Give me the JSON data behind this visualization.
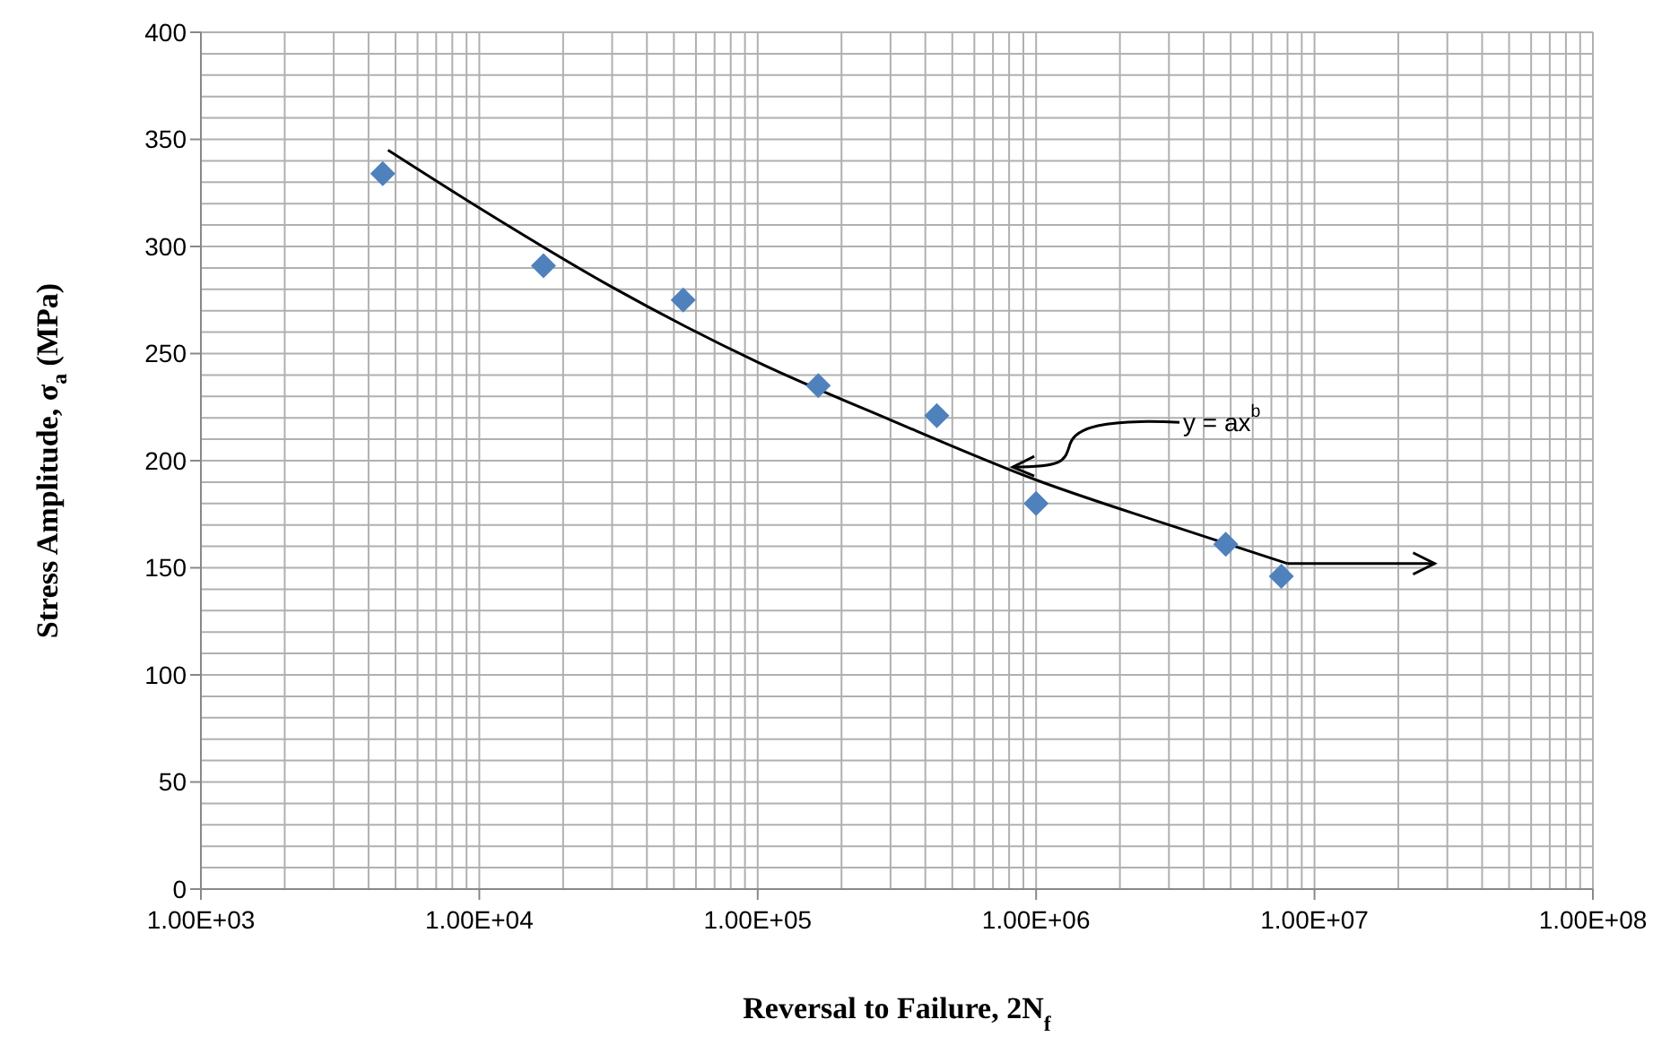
{
  "chart_data": {
    "type": "scatter",
    "xlabel": "Reversal to Failure, 2N$_{f}$",
    "ylabel": "Stress Amplitude, σ$_{a}$ (MPa)",
    "log": "x",
    "grid": true,
    "marker": "diamond",
    "xlim": [
      1000,
      100000000
    ],
    "ylim": [
      0,
      400
    ],
    "xticks": [
      {
        "value": 1000,
        "label": "1.00E+03"
      },
      {
        "value": 10000,
        "label": "1.00E+04"
      },
      {
        "value": 100000,
        "label": "1.00E+05"
      },
      {
        "value": 1000000,
        "label": "1.00E+06"
      },
      {
        "value": 10000000,
        "label": "1.00E+07"
      },
      {
        "value": 100000000,
        "label": "1.00E+08"
      }
    ],
    "yticks": [
      0,
      50,
      100,
      150,
      200,
      250,
      300,
      350,
      400
    ],
    "series": [
      {
        "color": "#4f81bd",
        "x": [
          4500,
          17000,
          54000,
          165000,
          440000,
          1000000,
          4800000,
          7600000
        ],
        "values": [
          334,
          291,
          275,
          235,
          221,
          180,
          161,
          146
        ]
      },
      {
        "type": "line",
        "color": "#000000",
        "marker": "none",
        "x": [
          4700,
          10000,
          30000,
          100000,
          300000,
          1000000,
          3000000,
          8000000
        ],
        "values": [
          345,
          318,
          281,
          246,
          219,
          191,
          170,
          152
        ]
      }
    ],
    "annotations": [
      {
        "text": "y = ax$^{b}$",
        "x": 800000,
        "y": 197
      }
    ]
  }
}
